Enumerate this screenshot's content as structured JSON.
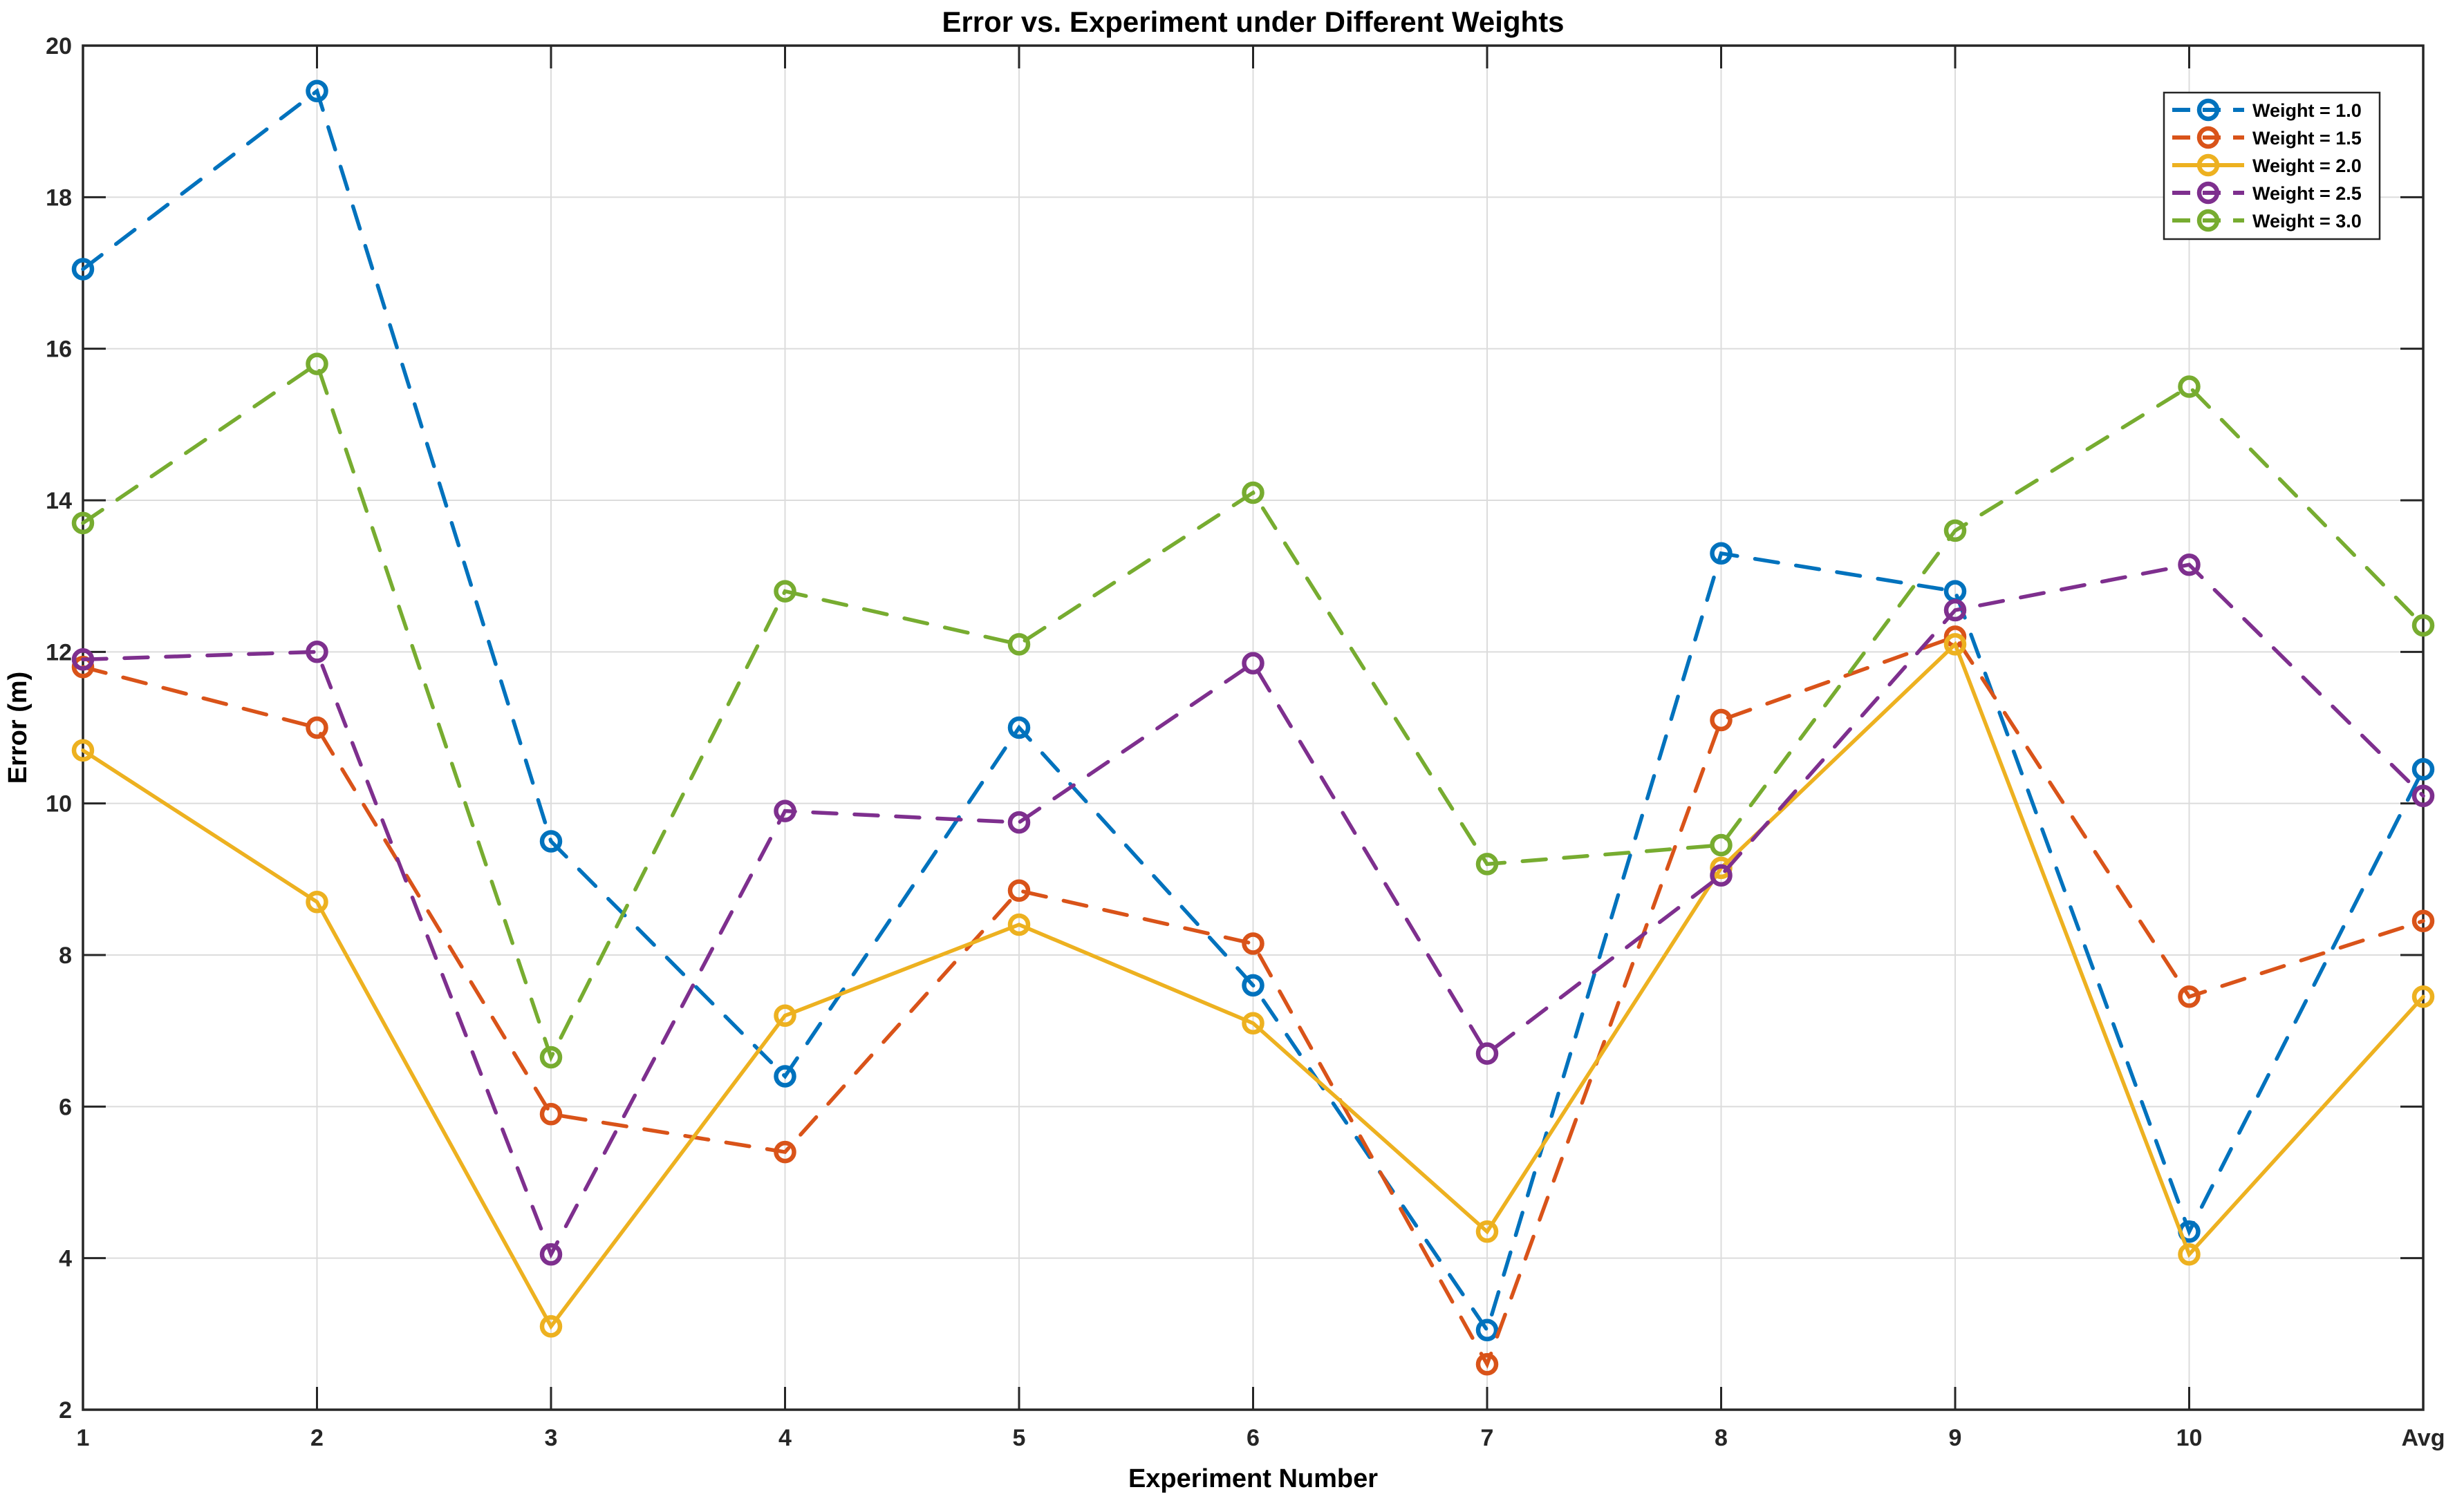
{
  "chart_data": {
    "type": "line",
    "title": "Error vs. Experiment under Different Weights",
    "xlabel": "Experiment Number",
    "ylabel": "Error (m)",
    "categories": [
      "1",
      "2",
      "3",
      "4",
      "5",
      "6",
      "7",
      "8",
      "9",
      "10",
      "Avg"
    ],
    "ylim": [
      2,
      20
    ],
    "yticks": [
      2,
      4,
      6,
      8,
      10,
      12,
      14,
      16,
      18,
      20
    ],
    "grid": true,
    "legend_position": "top-right",
    "colors": {
      "background": "#ffffff",
      "axis": "#262626",
      "grid": "#dcdcdc",
      "text": "#000000"
    },
    "series": [
      {
        "name": "Weight = 1.0",
        "color": "#0072BD",
        "style": "dashed",
        "marker": "circle",
        "values": [
          17.05,
          19.4,
          9.5,
          6.4,
          11.0,
          7.6,
          3.05,
          13.3,
          12.8,
          4.35,
          10.45
        ]
      },
      {
        "name": "Weight = 1.5",
        "color": "#D95319",
        "style": "dashed",
        "marker": "circle",
        "values": [
          11.8,
          11.0,
          5.9,
          5.4,
          8.85,
          8.15,
          2.6,
          11.1,
          12.2,
          7.45,
          8.45
        ]
      },
      {
        "name": "Weight = 2.0",
        "color": "#EDB120",
        "style": "solid",
        "marker": "circle",
        "values": [
          10.7,
          8.7,
          3.1,
          7.2,
          8.4,
          7.1,
          4.35,
          9.15,
          12.1,
          4.05,
          7.45
        ]
      },
      {
        "name": "Weight = 2.5",
        "color": "#7E2F8E",
        "style": "dashed",
        "marker": "circle",
        "values": [
          11.9,
          12.0,
          4.05,
          9.9,
          9.75,
          11.85,
          6.7,
          9.05,
          12.55,
          13.15,
          10.1
        ]
      },
      {
        "name": "Weight = 3.0",
        "color": "#77AC30",
        "style": "dashed",
        "marker": "circle",
        "values": [
          13.7,
          15.8,
          6.65,
          12.8,
          12.1,
          14.1,
          9.2,
          9.45,
          13.6,
          15.5,
          12.35
        ]
      }
    ]
  }
}
